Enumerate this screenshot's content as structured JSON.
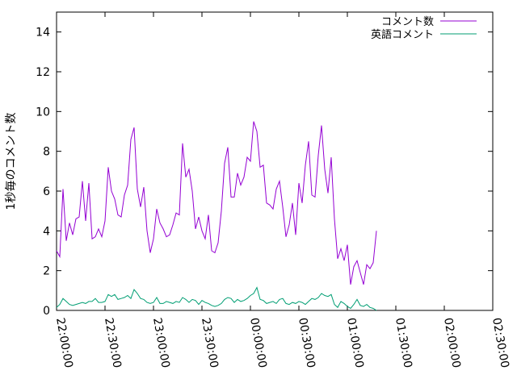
{
  "chart_data": {
    "type": "line",
    "title": "",
    "xlabel": "",
    "ylabel": "1秒毎のコメント数",
    "xlim": [
      "22:00:00",
      "02:30:00"
    ],
    "ylim": [
      0,
      15
    ],
    "yticks": [
      0,
      2,
      4,
      6,
      8,
      10,
      12,
      14
    ],
    "xticks": [
      "22:00:00",
      "22:30:00",
      "23:00:00",
      "23:30:00",
      "00:00:00",
      "00:30:00",
      "01:00:00",
      "01:30:00",
      "02:00:00",
      "02:30:00"
    ],
    "grid": false,
    "legend_position": "top-right",
    "x_start": "22:00:00",
    "x_step_seconds": 120,
    "series": [
      {
        "name": "コメント数",
        "color": "#9400d3",
        "values": [
          3.0,
          2.7,
          6.1,
          3.5,
          4.4,
          3.8,
          4.6,
          4.7,
          6.5,
          4.5,
          6.4,
          3.6,
          3.7,
          4.1,
          3.7,
          4.5,
          7.2,
          6.0,
          5.6,
          4.8,
          4.7,
          5.8,
          6.3,
          8.6,
          9.2,
          6.1,
          5.2,
          6.2,
          4.0,
          2.9,
          3.6,
          5.1,
          4.4,
          4.1,
          3.7,
          3.8,
          4.3,
          4.9,
          4.8,
          8.4,
          6.7,
          7.1,
          6.0,
          4.1,
          4.7,
          4.0,
          3.6,
          4.8,
          3.0,
          2.9,
          3.4,
          5.0,
          7.4,
          8.2,
          5.7,
          5.7,
          6.9,
          6.3,
          6.7,
          7.7,
          7.5,
          9.5,
          9.0,
          7.2,
          7.3,
          5.4,
          5.3,
          5.1,
          6.1,
          6.5,
          5.2,
          3.7,
          4.3,
          5.4,
          3.8,
          6.4,
          5.4,
          7.3,
          8.5,
          5.8,
          5.7,
          7.8,
          9.3,
          7.1,
          5.9,
          7.7,
          4.6,
          2.6,
          3.1,
          2.5,
          3.3,
          1.3,
          2.2,
          2.5,
          1.9,
          1.3,
          2.3,
          2.1,
          2.4,
          4.0
        ]
      },
      {
        "name": "英語コメント",
        "color": "#009e73",
        "values": [
          0.15,
          0.3,
          0.6,
          0.45,
          0.3,
          0.25,
          0.3,
          0.35,
          0.4,
          0.35,
          0.45,
          0.45,
          0.6,
          0.4,
          0.4,
          0.45,
          0.8,
          0.7,
          0.8,
          0.55,
          0.6,
          0.65,
          0.75,
          0.6,
          1.05,
          0.85,
          0.6,
          0.55,
          0.4,
          0.35,
          0.4,
          0.65,
          0.35,
          0.35,
          0.45,
          0.4,
          0.35,
          0.45,
          0.4,
          0.65,
          0.55,
          0.4,
          0.55,
          0.5,
          0.3,
          0.5,
          0.4,
          0.35,
          0.25,
          0.2,
          0.25,
          0.35,
          0.55,
          0.65,
          0.6,
          0.4,
          0.55,
          0.45,
          0.5,
          0.6,
          0.75,
          0.85,
          1.15,
          0.55,
          0.5,
          0.35,
          0.4,
          0.45,
          0.35,
          0.55,
          0.6,
          0.35,
          0.3,
          0.4,
          0.35,
          0.45,
          0.4,
          0.3,
          0.45,
          0.6,
          0.55,
          0.65,
          0.85,
          0.75,
          0.7,
          0.8,
          0.3,
          0.15,
          0.45,
          0.35,
          0.2,
          0.1,
          0.3,
          0.55,
          0.25,
          0.2,
          0.3,
          0.15,
          0.1,
          0.0
        ]
      }
    ]
  }
}
